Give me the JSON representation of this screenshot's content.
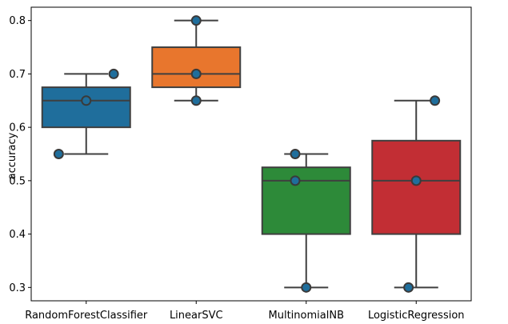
{
  "chart_data": {
    "type": "box",
    "title": "",
    "xlabel": "",
    "ylabel": "accuracy",
    "ylim": [
      0.275,
      0.825
    ],
    "yticks": [
      0.3,
      0.4,
      0.5,
      0.6,
      0.7,
      0.8
    ],
    "ytick_labels": [
      "0.3",
      "0.4",
      "0.5",
      "0.6",
      "0.7",
      "0.8"
    ],
    "grid": false,
    "categories": [
      "RandomForestClassifier",
      "LinearSVC",
      "MultinomialNB",
      "LogisticRegression"
    ],
    "boxes": [
      {
        "color": "#1f6e9c",
        "whisker_low": 0.55,
        "q1": 0.6,
        "median": 0.65,
        "q3": 0.675,
        "whisker_high": 0.7
      },
      {
        "color": "#e8762d",
        "whisker_low": 0.65,
        "q1": 0.675,
        "median": 0.7,
        "q3": 0.75,
        "whisker_high": 0.8
      },
      {
        "color": "#2d8a39",
        "whisker_low": 0.3,
        "q1": 0.4,
        "median": 0.5,
        "q3": 0.525,
        "whisker_high": 0.55
      },
      {
        "color": "#c22e34",
        "whisker_low": 0.3,
        "q1": 0.4,
        "median": 0.5,
        "q3": 0.575,
        "whisker_high": 0.65
      }
    ],
    "points": [
      {
        "category": 0,
        "offset": 0.25,
        "value": 0.7
      },
      {
        "category": 0,
        "offset": 0.0,
        "value": 0.65
      },
      {
        "category": 0,
        "offset": -0.25,
        "value": 0.55
      },
      {
        "category": 1,
        "offset": 0.0,
        "value": 0.8
      },
      {
        "category": 1,
        "offset": 0.0,
        "value": 0.7
      },
      {
        "category": 1,
        "offset": 0.0,
        "value": 0.65
      },
      {
        "category": 2,
        "offset": -0.1,
        "value": 0.55
      },
      {
        "category": 2,
        "offset": -0.1,
        "value": 0.5
      },
      {
        "category": 2,
        "offset": 0.0,
        "value": 0.3
      },
      {
        "category": 3,
        "offset": 0.17,
        "value": 0.65
      },
      {
        "category": 3,
        "offset": 0.0,
        "value": 0.5
      },
      {
        "category": 3,
        "offset": -0.07,
        "value": 0.3
      }
    ],
    "point_color": "#1f6e9c",
    "point_edge": "#3a3a3a"
  }
}
